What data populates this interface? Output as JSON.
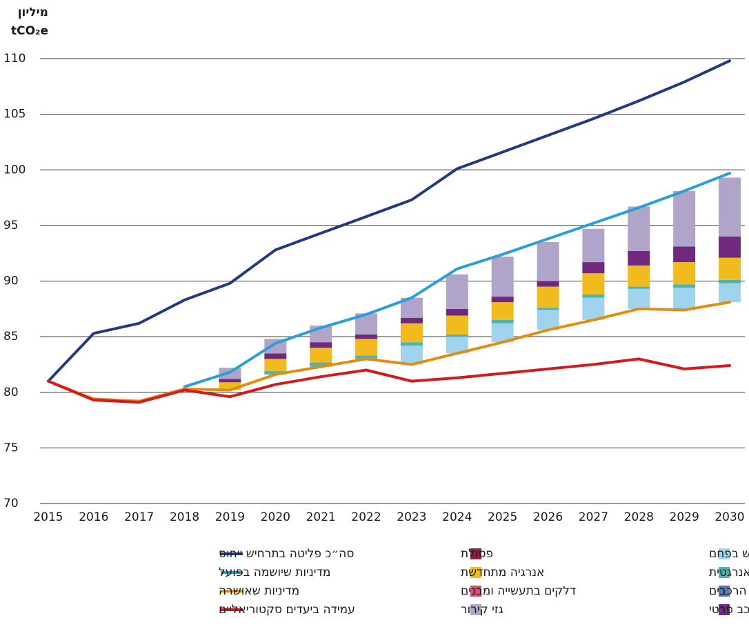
{
  "chart_data": {
    "type": "bar",
    "y_label": [
      "מיליון",
      "tCO₂e"
    ],
    "categories": [
      "2015",
      "2016",
      "2017",
      "2018",
      "2019",
      "2020",
      "2021",
      "2022",
      "2023",
      "2024",
      "2025",
      "2026",
      "2027",
      "2028",
      "2029",
      "2030"
    ],
    "ylim": [
      70,
      110
    ],
    "yticks": [
      70,
      75,
      80,
      85,
      90,
      95,
      100,
      105,
      110
    ],
    "grid": true,
    "series": [
      {
        "name": "צמצום השימוש בפחם",
        "type": "bar",
        "color": "#9fd3ee",
        "values": [
          null,
          null,
          null,
          null,
          0,
          0,
          0,
          0,
          1.7,
          1.5,
          1.7,
          1.8,
          2.0,
          1.8,
          2.0,
          1.7
        ]
      },
      {
        "name": "התייעלות אנרגטית",
        "type": "bar",
        "color": "#4fb3b3",
        "values": [
          null,
          null,
          null,
          null,
          0,
          0.3,
          0.4,
          0.3,
          0.3,
          0.2,
          0.3,
          0.2,
          0.3,
          0.2,
          0.3,
          0.3
        ]
      },
      {
        "name": "שינוי תמהיל הרכבים",
        "type": "bar",
        "color": "#5a78a8",
        "values": [
          null,
          null,
          null,
          null,
          0,
          0,
          0,
          0,
          0,
          0,
          0,
          0,
          0,
          0,
          0,
          0
        ]
      },
      {
        "name": "אנרגיה מתחדשת",
        "type": "bar",
        "color": "#f2bb1d",
        "values": [
          null,
          null,
          null,
          null,
          0.7,
          1.1,
          1.3,
          1.5,
          1.7,
          1.7,
          1.6,
          1.9,
          1.9,
          1.9,
          2.0,
          2.0
        ]
      },
      {
        "name": "דלקים בתעשייה ומבנים",
        "type": "bar",
        "color": "#cc5472",
        "values": [
          null,
          null,
          null,
          null,
          0,
          0,
          0,
          0,
          0,
          0,
          0,
          0,
          0,
          0,
          0,
          0
        ]
      },
      {
        "name": "צמצום הנסועה ברכב פרטי",
        "type": "bar",
        "color": "#6f2a80",
        "values": [
          null,
          null,
          null,
          null,
          0.3,
          0.5,
          0.5,
          0.4,
          0.5,
          0.6,
          0.5,
          0.5,
          1.0,
          1.3,
          1.4,
          1.9
        ]
      },
      {
        "name": "פסולת",
        "type": "bar",
        "color": "#8b2246",
        "values": [
          null,
          null,
          null,
          null,
          0,
          0,
          0,
          0,
          0,
          0,
          0,
          0,
          0,
          0,
          0,
          0
        ]
      },
      {
        "name": "גזי קירור",
        "type": "bar",
        "color": "#b0a5c8",
        "values": [
          null,
          null,
          null,
          null,
          1.0,
          1.3,
          1.5,
          1.9,
          1.8,
          3.1,
          3.6,
          3.5,
          3.0,
          4.0,
          5.0,
          5.3
        ]
      },
      {
        "name": "סה״כ פליטה בתרחיש ייחוס",
        "type": "line",
        "color": "#233a80",
        "values": [
          81.0,
          85.3,
          86.2,
          88.3,
          89.8,
          92.8,
          94.3,
          95.8,
          97.3,
          100.1,
          101.6,
          103.1,
          104.6,
          106.2,
          107.9,
          109.8
        ]
      },
      {
        "name": "מדיניות שיושמה בפועל",
        "type": "line",
        "color": "#2a9fd8",
        "values": [
          null,
          null,
          null,
          80.5,
          81.8,
          84.4,
          85.8,
          87.0,
          88.5,
          91.1,
          92.4,
          93.8,
          95.2,
          96.6,
          98.1,
          99.7
        ]
      },
      {
        "name": "מדיניות שאושרה",
        "type": "line",
        "color": "#e28c10",
        "values": [
          81.0,
          79.4,
          79.2,
          80.3,
          80.2,
          81.6,
          82.3,
          83.0,
          82.5,
          83.5,
          84.5,
          85.6,
          86.5,
          87.5,
          87.4,
          88.1
        ]
      },
      {
        "name": "עמידה ביעדים סקטוריאליים",
        "type": "line",
        "color": "#d7191c",
        "values": [
          81.0,
          79.3,
          79.1,
          80.2,
          79.6,
          80.7,
          81.4,
          82.0,
          81.0,
          81.3,
          81.7,
          82.1,
          82.5,
          83.0,
          82.1,
          82.4
        ]
      }
    ]
  }
}
